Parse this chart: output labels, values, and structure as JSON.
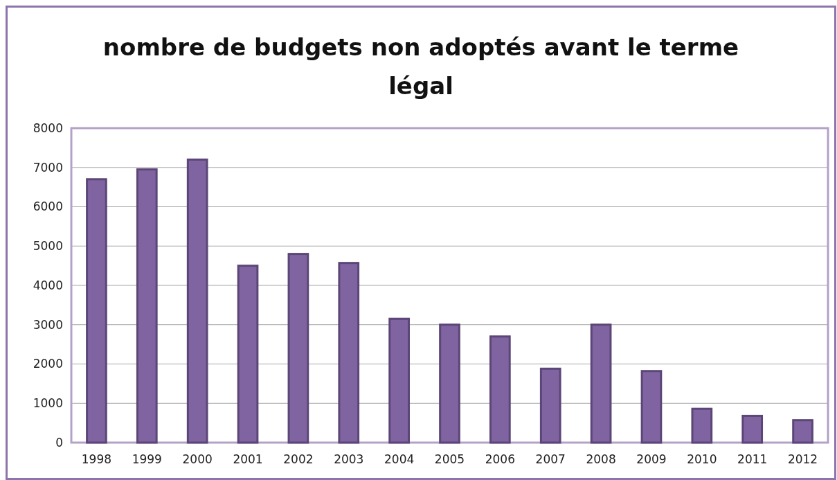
{
  "chart_data": {
    "type": "bar",
    "title": "nombre de budgets non adoptés avant le terme légal",
    "categories": [
      "1998",
      "1999",
      "2000",
      "2001",
      "2002",
      "2003",
      "2004",
      "2005",
      "2006",
      "2007",
      "2008",
      "2009",
      "2010",
      "2011",
      "2012"
    ],
    "values": [
      6700,
      6950,
      7200,
      4500,
      4800,
      4570,
      3150,
      3000,
      2700,
      1880,
      3000,
      1820,
      860,
      680,
      570
    ],
    "color": "#8064a2",
    "ylim": [
      0,
      8000
    ],
    "yticks": [
      0,
      1000,
      2000,
      3000,
      4000,
      5000,
      6000,
      7000,
      8000
    ],
    "grid": "y"
  }
}
